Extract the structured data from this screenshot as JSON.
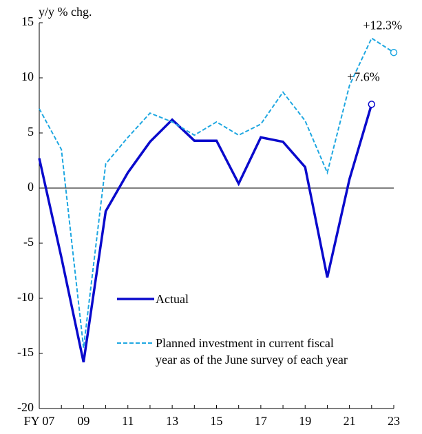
{
  "chart_data": {
    "type": "line",
    "y_label": "y/y % chg.",
    "categories": [
      "FY 07",
      null,
      "09",
      null,
      "11",
      null,
      "13",
      null,
      "15",
      null,
      "17",
      null,
      "19",
      null,
      "21",
      null,
      "23"
    ],
    "series": [
      {
        "name": "Actual",
        "color": "#0a0acc",
        "dash": false,
        "values": [
          2.7,
          -6.3,
          -15.8,
          -2.1,
          1.4,
          4.2,
          6.2,
          4.3,
          4.3,
          0.4,
          4.6,
          4.2,
          1.9,
          -8.1,
          0.8,
          7.6,
          null
        ]
      },
      {
        "name": "Planned investment in current fiscal\nyear as of the June survey of each year",
        "color": "#1ea7e1",
        "dash": true,
        "values": [
          7.2,
          3.5,
          -14.5,
          2.2,
          4.6,
          6.8,
          6.0,
          4.8,
          6.0,
          4.8,
          5.8,
          8.7,
          6.1,
          1.4,
          9.3,
          13.6,
          12.3
        ]
      }
    ],
    "annotations": [
      "+7.6%",
      "+12.3%"
    ],
    "ylim": [
      -20,
      15
    ],
    "yticks": [
      -20,
      -15,
      -10,
      -5,
      0,
      5,
      10,
      15
    ]
  }
}
